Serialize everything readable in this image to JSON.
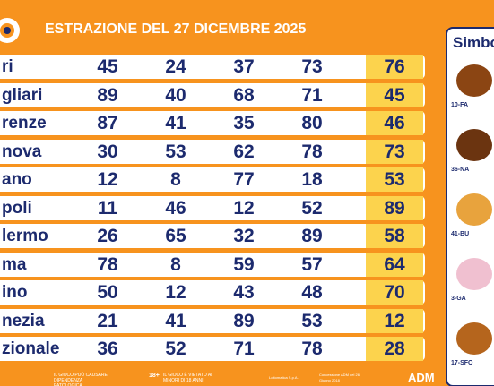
{
  "header": {
    "title": "ESTRAZIONE DEL 27 DICEMBRE 2025"
  },
  "table": {
    "rows": [
      {
        "city": "ri",
        "numbers": [
          45,
          24,
          37,
          73,
          76
        ]
      },
      {
        "city": "gliari",
        "numbers": [
          89,
          40,
          68,
          71,
          45
        ]
      },
      {
        "city": "renze",
        "numbers": [
          87,
          41,
          35,
          80,
          46
        ]
      },
      {
        "city": "nova",
        "numbers": [
          30,
          53,
          62,
          78,
          73
        ]
      },
      {
        "city": "ano",
        "numbers": [
          12,
          8,
          77,
          18,
          53
        ]
      },
      {
        "city": "poli",
        "numbers": [
          11,
          46,
          12,
          52,
          89
        ]
      },
      {
        "city": "lermo",
        "numbers": [
          26,
          65,
          32,
          89,
          58
        ]
      },
      {
        "city": "ma",
        "numbers": [
          78,
          8,
          59,
          57,
          64
        ]
      },
      {
        "city": "ino",
        "numbers": [
          50,
          12,
          43,
          48,
          70
        ]
      },
      {
        "city": "nezia",
        "numbers": [
          21,
          41,
          89,
          53,
          12
        ]
      },
      {
        "city": "zionale",
        "numbers": [
          36,
          52,
          71,
          78,
          28
        ]
      }
    ]
  },
  "symbols": {
    "title": "Simbo",
    "items": [
      "10-FA",
      "36-NA",
      "41-BU",
      "3-GA",
      "17-SFO"
    ]
  },
  "footer": {
    "warning": "IL GIOCO PUÒ CAUSARE DIPENDENZA PATOLOGICA",
    "age": "18+",
    "minors": "IL GIOCO È VIETATO AI MINORI DI 18 ANNI",
    "company": "Lottomatica S.p.A.",
    "concession": "Concessione ADM del 26 Giugno 2018",
    "adm": "ADM"
  }
}
